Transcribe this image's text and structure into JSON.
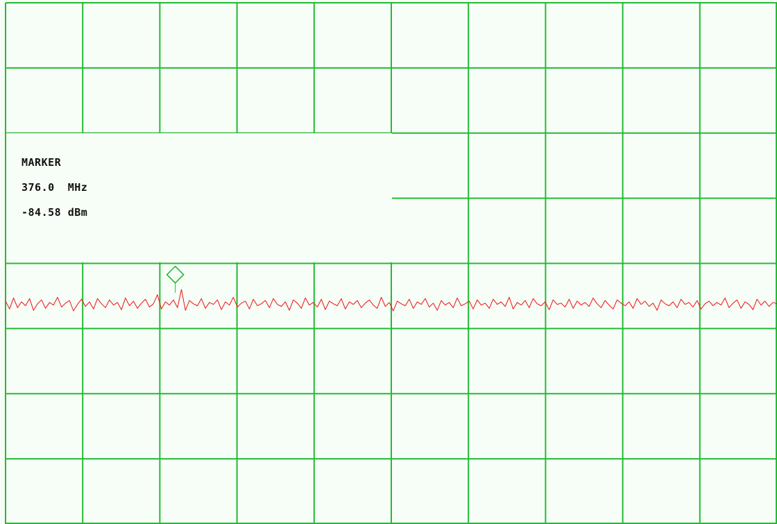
{
  "chart_data": {
    "type": "line",
    "title": "",
    "xlabel": "",
    "ylabel": "",
    "xlim": [
      0,
      1000
    ],
    "ylim": [
      0,
      8
    ],
    "grid": true,
    "x_divisions": 10,
    "y_divisions": 8,
    "trace_level": 3.4,
    "marker": {
      "x": 220,
      "y": 3.55,
      "heading": "MARKER",
      "frequency": "376.0  MHz",
      "level": "-84.58 dBm"
    },
    "series": [
      {
        "values": [
          3.42,
          3.3,
          3.47,
          3.32,
          3.41,
          3.35,
          3.46,
          3.28,
          3.38,
          3.44,
          3.31,
          3.4,
          3.36,
          3.48,
          3.33,
          3.39,
          3.43,
          3.27,
          3.37,
          3.45,
          3.34,
          3.41,
          3.3,
          3.46,
          3.38,
          3.32,
          3.44,
          3.36,
          3.4,
          3.29,
          3.47,
          3.35,
          3.42,
          3.31,
          3.39,
          3.45,
          3.33,
          3.38,
          3.52,
          3.3,
          3.41,
          3.36,
          3.44,
          3.32,
          3.6,
          3.28,
          3.43,
          3.38,
          3.35,
          3.46,
          3.31,
          3.4,
          3.37,
          3.44,
          3.29,
          3.41,
          3.36,
          3.48,
          3.33,
          3.39,
          3.42,
          3.3,
          3.45,
          3.35,
          3.38,
          3.43,
          3.32,
          3.46,
          3.37,
          3.34,
          3.41,
          3.28,
          3.44,
          3.39,
          3.31,
          3.47,
          3.36,
          3.4,
          3.33,
          3.45,
          3.29,
          3.42,
          3.38,
          3.35,
          3.46,
          3.3,
          3.41,
          3.37,
          3.43,
          3.32,
          3.39,
          3.44,
          3.36,
          3.31,
          3.48,
          3.34,
          3.4,
          3.27,
          3.42,
          3.38,
          3.35,
          3.45,
          3.31,
          3.41,
          3.37,
          3.46,
          3.33,
          3.39,
          3.28,
          3.43,
          3.36,
          3.4,
          3.32,
          3.47,
          3.35,
          3.38,
          3.42,
          3.3,
          3.44,
          3.36,
          3.39,
          3.31,
          3.45,
          3.37,
          3.41,
          3.34,
          3.48,
          3.3,
          3.4,
          3.36,
          3.43,
          3.32,
          3.46,
          3.38,
          3.35,
          3.41,
          3.29,
          3.44,
          3.37,
          3.39,
          3.33,
          3.45,
          3.31,
          3.42,
          3.36,
          3.4,
          3.34,
          3.47,
          3.38,
          3.32,
          3.43,
          3.36,
          3.3,
          3.44,
          3.39,
          3.35,
          3.41,
          3.31,
          3.46,
          3.37,
          3.42,
          3.34,
          3.39,
          3.28,
          3.44,
          3.38,
          3.35,
          3.41,
          3.32,
          3.45,
          3.37,
          3.4,
          3.33,
          3.43,
          3.3,
          3.38,
          3.42,
          3.35,
          3.4,
          3.36,
          3.47,
          3.32,
          3.39,
          3.44,
          3.31,
          3.41,
          3.37,
          3.29,
          3.45,
          3.36,
          3.42,
          3.34,
          3.4,
          3.38
        ]
      }
    ]
  }
}
